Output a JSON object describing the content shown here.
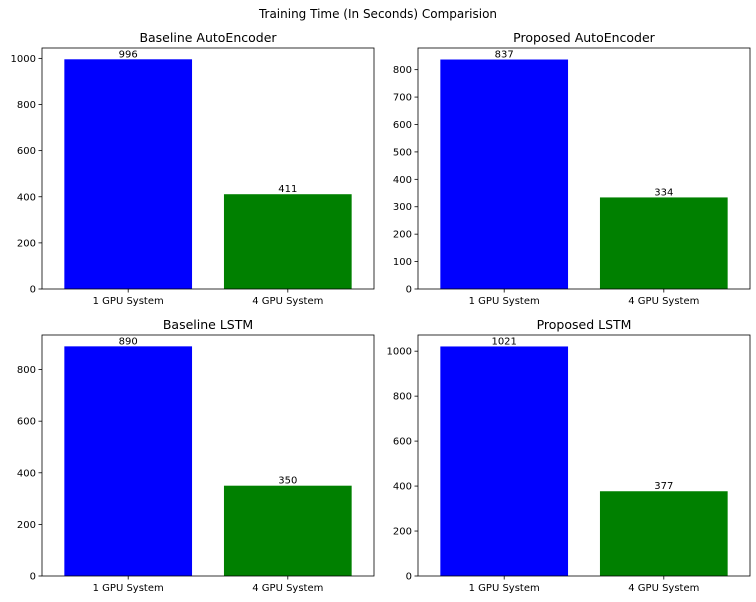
{
  "figure_title": "Training Time (In Seconds) Comparision",
  "colors": {
    "bar_1": "#0000ff",
    "bar_2": "#008000",
    "axes": "#000000",
    "background": "#ffffff"
  },
  "chart_data": [
    {
      "type": "bar",
      "title": "Baseline AutoEncoder",
      "categories": [
        "1 GPU System",
        "4 GPU System"
      ],
      "values": [
        996,
        411
      ],
      "colors": [
        "#0000ff",
        "#008000"
      ],
      "ylim": [
        0,
        1045
      ],
      "yticks": [
        0,
        200,
        400,
        600,
        800,
        1000
      ],
      "xlabel": "",
      "ylabel": "",
      "grid": false
    },
    {
      "type": "bar",
      "title": "Proposed AutoEncoder",
      "categories": [
        "1 GPU System",
        "4 GPU System"
      ],
      "values": [
        837,
        334
      ],
      "colors": [
        "#0000ff",
        "#008000"
      ],
      "ylim": [
        0,
        879
      ],
      "yticks": [
        0,
        100,
        200,
        300,
        400,
        500,
        600,
        700,
        800
      ],
      "xlabel": "",
      "ylabel": "",
      "grid": false
    },
    {
      "type": "bar",
      "title": "Baseline LSTM",
      "categories": [
        "1 GPU System",
        "4 GPU System"
      ],
      "values": [
        890,
        350
      ],
      "colors": [
        "#0000ff",
        "#008000"
      ],
      "ylim": [
        0,
        934
      ],
      "yticks": [
        0,
        200,
        400,
        600,
        800
      ],
      "xlabel": "",
      "ylabel": "",
      "grid": false
    },
    {
      "type": "bar",
      "title": "Proposed LSTM",
      "categories": [
        "1 GPU System",
        "4 GPU System"
      ],
      "values": [
        1021,
        377
      ],
      "colors": [
        "#0000ff",
        "#008000"
      ],
      "ylim": [
        0,
        1072
      ],
      "yticks": [
        0,
        200,
        400,
        600,
        800,
        1000
      ],
      "xlabel": "",
      "ylabel": "",
      "grid": false
    }
  ]
}
